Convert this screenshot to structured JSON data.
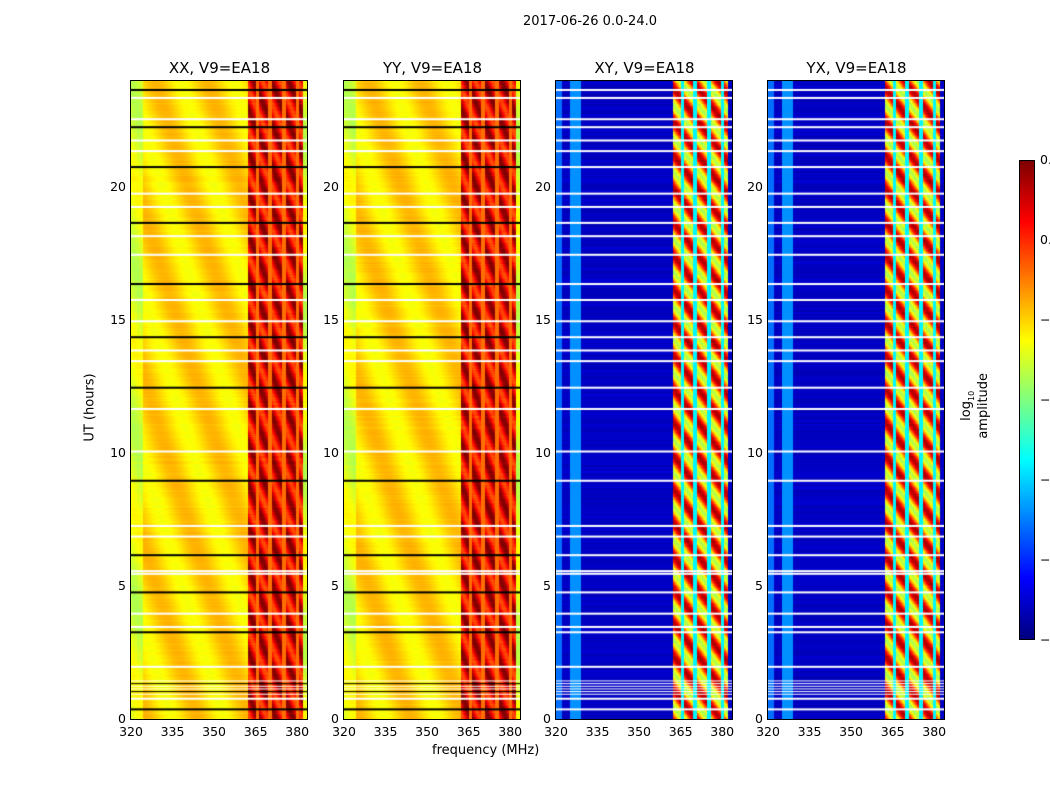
{
  "chart_data": {
    "type": "heatmap",
    "title": "2017-06-26 0.0-24.0",
    "xlabel": "frequency (MHz)",
    "ylabel": "UT (hours)",
    "xlim": [
      320,
      384
    ],
    "ylim": [
      0,
      24
    ],
    "xticks": [
      "320",
      "335",
      "350",
      "365",
      "380"
    ],
    "yticks": [
      "0",
      "5",
      "10",
      "15",
      "20"
    ],
    "colorbar": {
      "label_prefix": "log",
      "label_sub": "10",
      "label_suffix": " amplitude",
      "range": [
        -2.5,
        0.5
      ],
      "ticks": [
        "0.5",
        "0.0",
        "−0.5",
        "−1.0",
        "−1.5",
        "−2.0",
        "−2.5"
      ],
      "colormap": "jet"
    },
    "panels": [
      {
        "title": "XX, V9=EA18",
        "pol": "parallel"
      },
      {
        "title": "YY, V9=EA18",
        "pol": "parallel"
      },
      {
        "title": "XY, V9=EA18",
        "pol": "cross"
      },
      {
        "title": "YX, V9=EA18",
        "pol": "cross"
      }
    ],
    "band_mhz": [
      362,
      382
    ],
    "band_gaps_mhz": [
      365.5,
      370,
      375,
      380
    ],
    "flagged_hours": [
      0.4,
      0.8,
      0.95,
      1.05,
      1.15,
      1.25,
      1.35,
      1.45,
      2.0,
      3.3,
      3.5,
      4.0,
      4.8,
      5.5,
      5.6,
      6.2,
      6.9,
      7.3,
      9.0,
      10.1,
      11.7,
      12.5,
      13.5,
      13.9,
      14.4,
      15.0,
      15.8,
      16.4,
      17.5,
      18.2,
      18.7,
      19.3,
      19.8,
      20.8,
      21.4,
      21.8,
      22.3,
      22.6,
      23.4,
      23.7
    ]
  }
}
